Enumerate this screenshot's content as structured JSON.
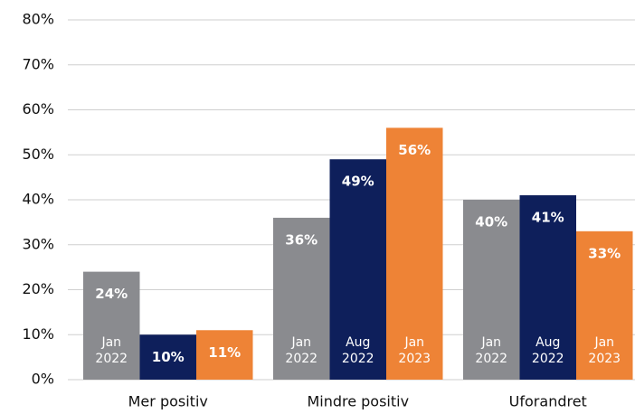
{
  "chart_data": {
    "type": "bar",
    "categories": [
      "Mer positiv",
      "Mindre positiv",
      "Uforandret"
    ],
    "series": [
      {
        "name": "Jan 2022",
        "color": "#8a8b8f",
        "values": [
          24,
          36,
          40
        ],
        "value_labels": [
          "24%",
          "36%",
          "40%"
        ]
      },
      {
        "name": "Aug 2022",
        "color": "#0e1f5b",
        "values": [
          10,
          49,
          41
        ],
        "value_labels": [
          "10%",
          "49%",
          "41%"
        ]
      },
      {
        "name": "Jan 2023",
        "color": "#ee8336",
        "values": [
          11,
          56,
          33
        ],
        "value_labels": [
          "11%",
          "56%",
          "33%"
        ]
      }
    ],
    "ylim": [
      0,
      80
    ],
    "yticks": [
      {
        "value": 0,
        "label": "0%"
      },
      {
        "value": 10,
        "label": "10%"
      },
      {
        "value": 20,
        "label": "20%"
      },
      {
        "value": 30,
        "label": "30%"
      },
      {
        "value": 40,
        "label": "40%"
      },
      {
        "value": 50,
        "label": "50%"
      },
      {
        "value": 60,
        "label": "60%"
      },
      {
        "value": 70,
        "label": "70%"
      },
      {
        "value": 80,
        "label": "80%"
      }
    ],
    "grid": true
  }
}
